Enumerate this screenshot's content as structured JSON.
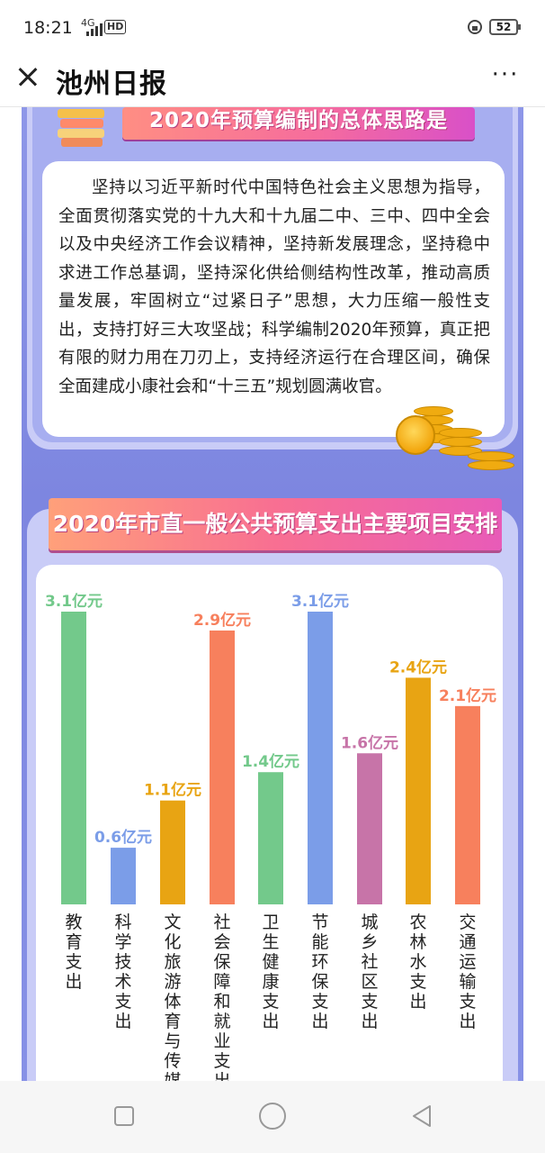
{
  "status_bar": {
    "time": "18:21",
    "network": "4G",
    "hd": "HD",
    "battery": "52"
  },
  "header": {
    "title": "池州日报"
  },
  "section1": {
    "title": "2020年预算编制的总体思路是",
    "paragraph": "坚持以习近平新时代中国特色社会主义思想为指导，全面贯彻落实党的十九大和十九届二中、三中、四中全会以及中央经济工作会议精神，坚持新发展理念，坚持稳中求进工作总基调，坚持深化供给侧结构性改革，推动高质量发展，牢固树立“过紧日子”思想，大力压缩一般性支出，支持打好三大攻坚战；科学编制2020年预算，真正把有限的财力用在刀刃上，支持经济运行在合理区间，确保全面建成小康社会和“十三五”规划圆满收官。"
  },
  "section2": {
    "title": "2020年市直一般公共预算支出主要项目安排"
  },
  "chart_data": {
    "type": "bar",
    "title": "2020年市直一般公共预算支出主要项目安排",
    "unit": "亿元",
    "categories": [
      "教育支出",
      "科学技术支出",
      "文化旅游体育与传媒",
      "社会保障和就业支出",
      "卫生健康支出",
      "节能环保支出",
      "城乡社区支出",
      "农林水支出",
      "交通运输支出"
    ],
    "values": [
      3.1,
      0.6,
      1.1,
      2.9,
      1.4,
      3.1,
      1.6,
      2.4,
      2.1
    ],
    "value_labels": [
      "3.1亿元",
      "0.6亿元",
      "1.1亿元",
      "2.9亿元",
      "1.4亿元",
      "3.1亿元",
      "1.6亿元",
      "2.4亿元",
      "2.1亿元"
    ],
    "colors": [
      "#73c98b",
      "#7b9de8",
      "#e8a413",
      "#f7805d",
      "#73c98b",
      "#7b9de8",
      "#c774a8",
      "#e8a413",
      "#f7805d"
    ]
  },
  "nav_bar": {
    "icons": [
      "square-icon",
      "circle-icon",
      "back-triangle-icon"
    ]
  }
}
